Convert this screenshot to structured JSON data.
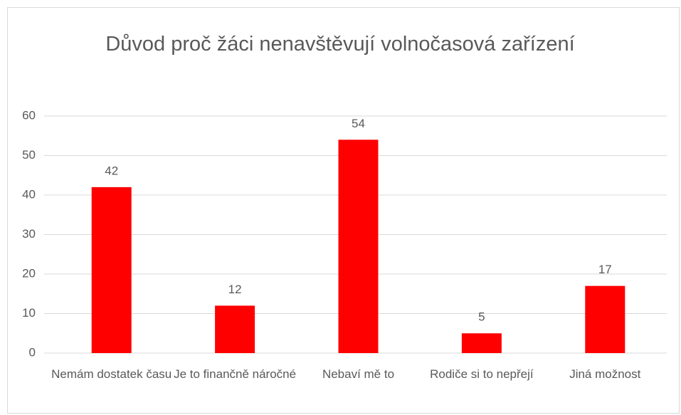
{
  "chart_data": {
    "type": "bar",
    "title": "Důvod proč žáci nenavštěvují volnočasová zařízení",
    "categories": [
      "Nemám dostatek času",
      "Je to finančně náročné",
      "Nebaví mě to",
      "Rodiče si to nepřejí",
      "Jiná možnost"
    ],
    "values": [
      42,
      12,
      54,
      5,
      17
    ],
    "color": "#ff0000",
    "ylim": [
      0,
      60
    ],
    "yticks": [
      0,
      10,
      20,
      30,
      40,
      50,
      60
    ],
    "grid": true
  }
}
